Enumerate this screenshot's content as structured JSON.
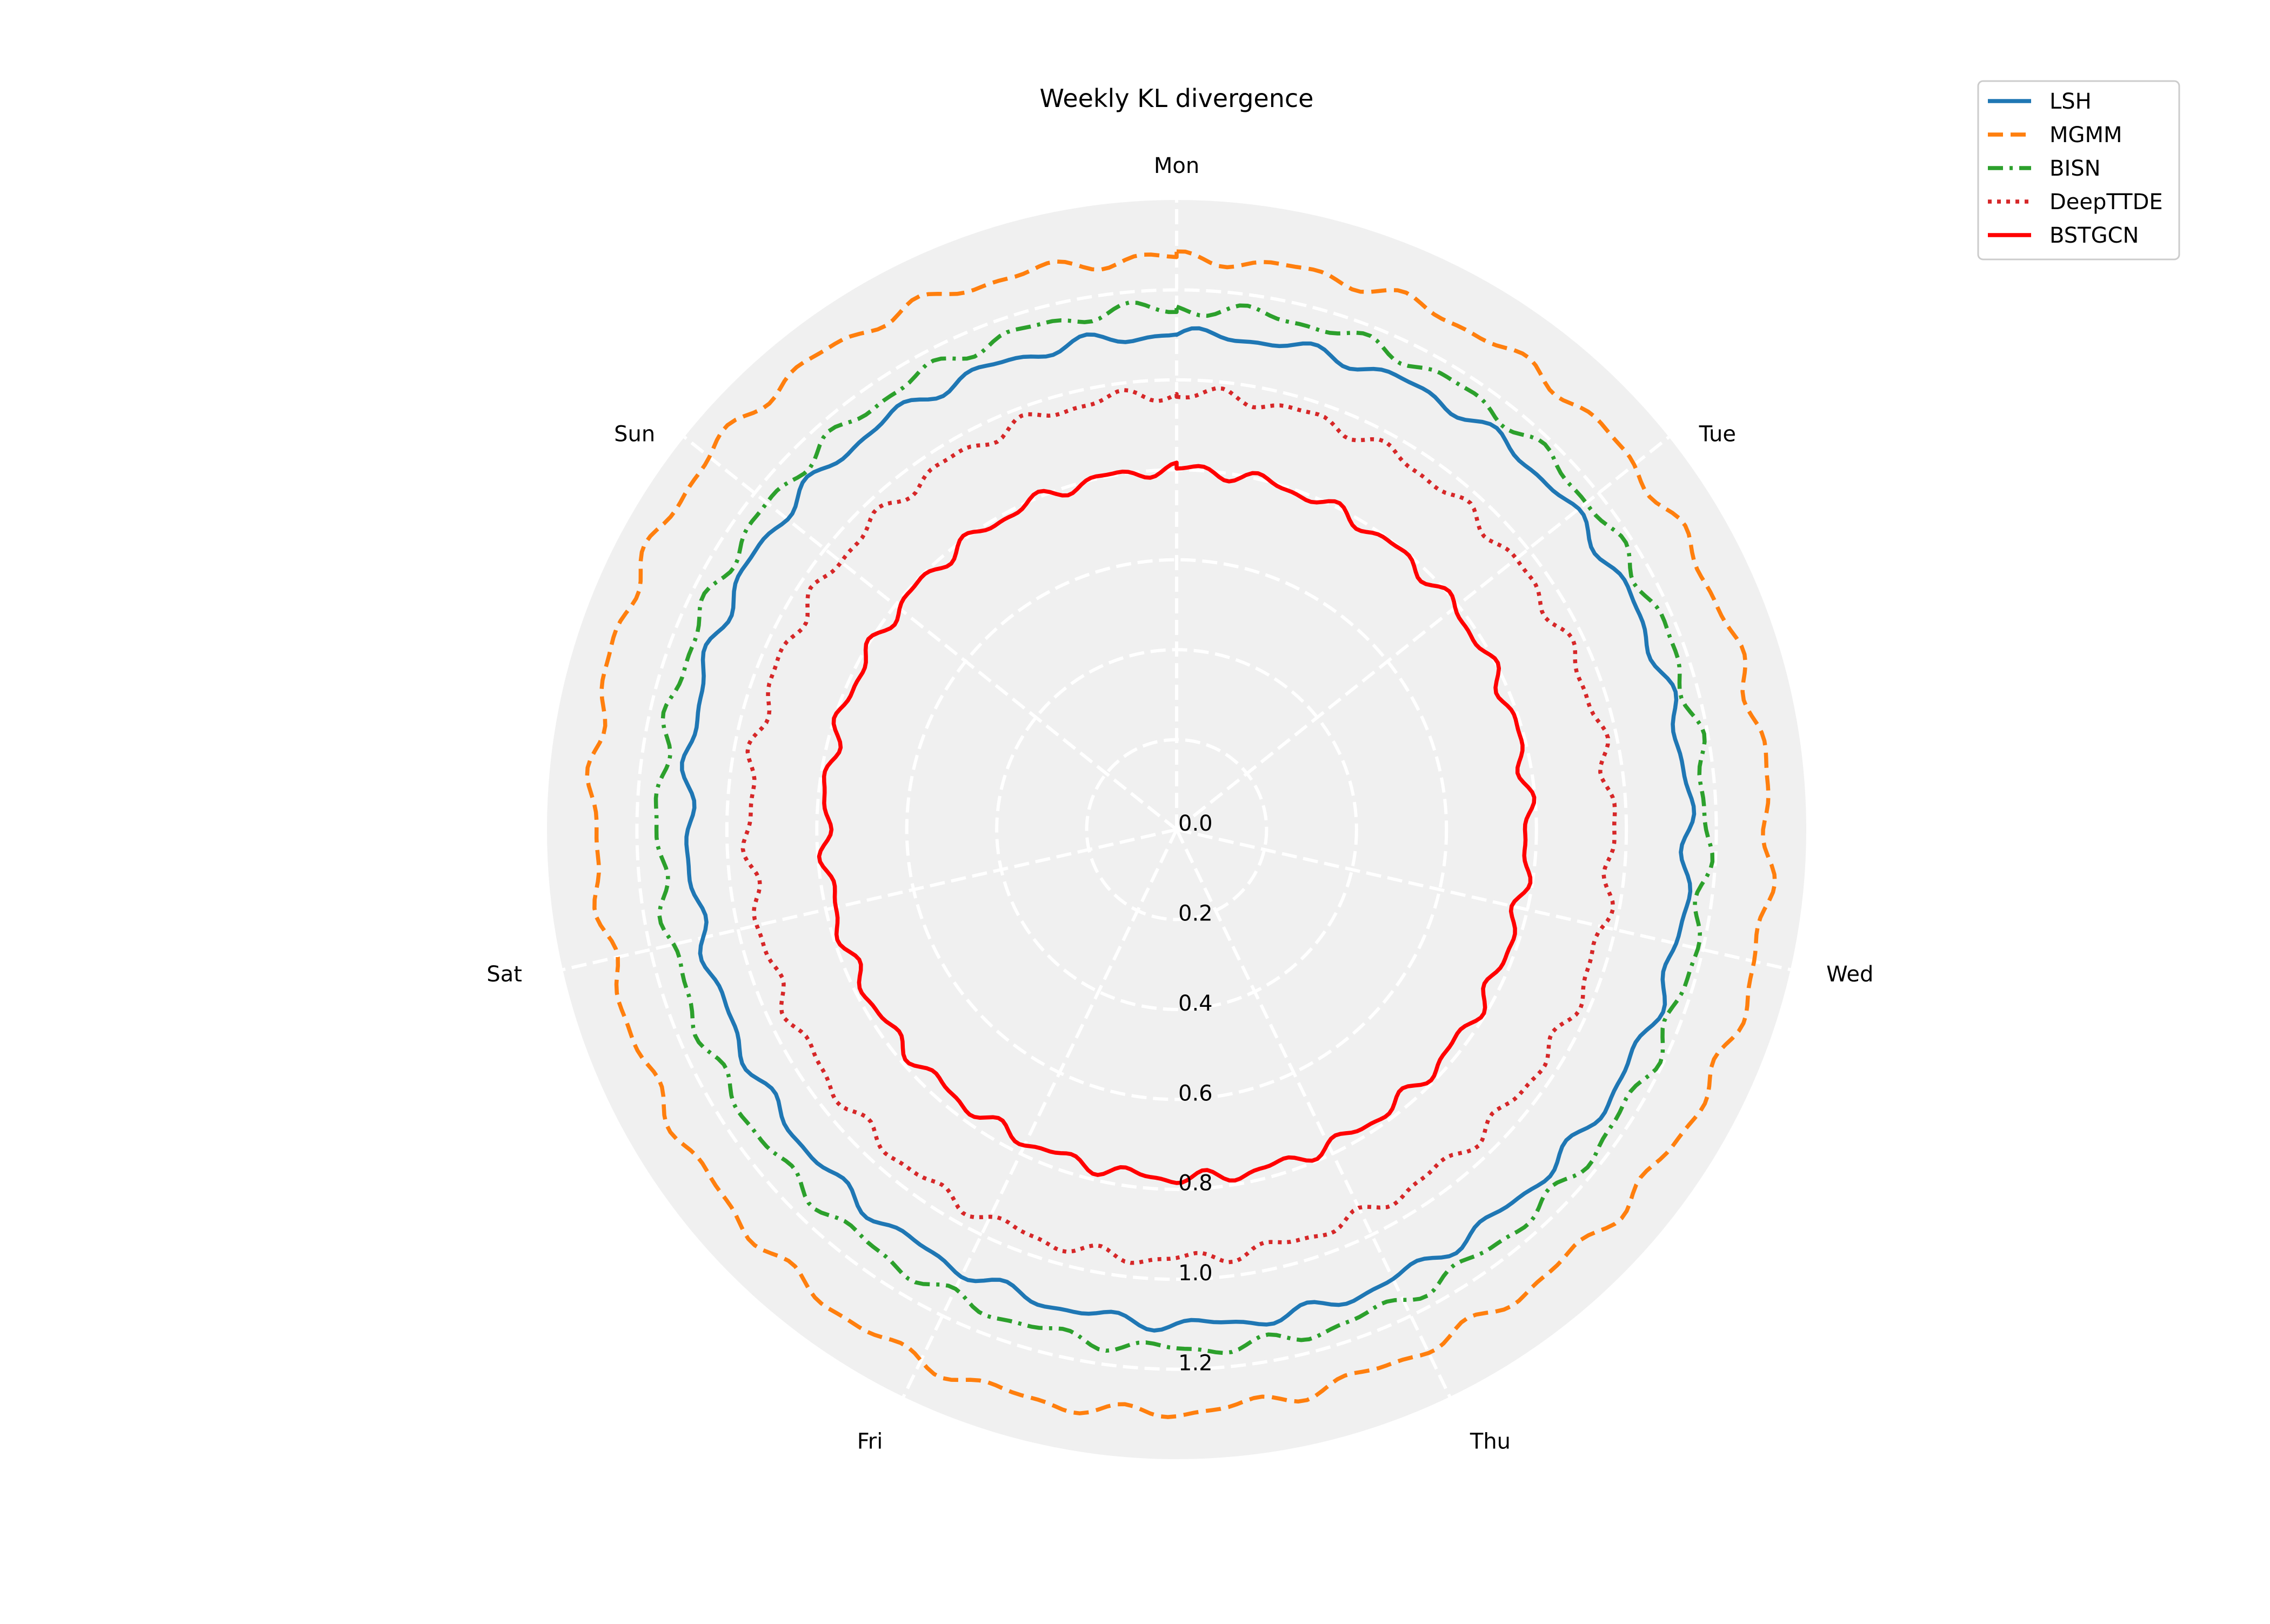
{
  "chart_data": {
    "type": "radar",
    "title": "Weekly KL divergence",
    "categories": [
      "Mon",
      "Tue",
      "Wed",
      "Thu",
      "Fri",
      "Sat",
      "Sun"
    ],
    "radial_ticks": [
      "0.0",
      "0.2",
      "0.4",
      "0.6",
      "0.8",
      "1.0",
      "1.2"
    ],
    "rlim": [
      0,
      1.4
    ],
    "grid": true,
    "legend_position": "top-right",
    "background_color": "#f0f0f0",
    "series": [
      {
        "name": "LSH",
        "color": "#1f77b4",
        "style": "solid",
        "values": [
          1.1,
          1.13,
          1.14,
          1.11,
          1.09,
          1.08,
          1.12
        ]
      },
      {
        "name": "MGMM",
        "color": "#ff7f0e",
        "style": "dashed",
        "values": [
          1.27,
          1.3,
          1.32,
          1.28,
          1.31,
          1.29,
          1.33
        ]
      },
      {
        "name": "BISN",
        "color": "#2ca02c",
        "style": "dashdot",
        "values": [
          1.16,
          1.17,
          1.18,
          1.16,
          1.15,
          1.15,
          1.16
        ]
      },
      {
        "name": "DeepTTDE",
        "color": "#d62728",
        "style": "dotted",
        "values": [
          0.97,
          0.96,
          0.97,
          0.95,
          0.96,
          0.95,
          0.96
        ]
      },
      {
        "name": "BSTGCN",
        "color": "#ff0000",
        "style": "solid",
        "values": [
          0.8,
          0.79,
          0.78,
          0.78,
          0.77,
          0.78,
          0.79
        ]
      }
    ]
  }
}
